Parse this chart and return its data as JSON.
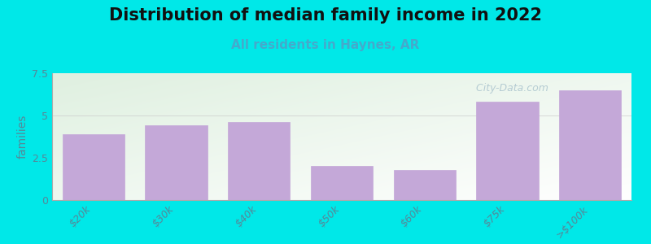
{
  "title": "Distribution of median family income in 2022",
  "subtitle": "All residents in Haynes, AR",
  "categories": [
    "$20k",
    "$30k",
    "$40k",
    "$50k",
    "$60k",
    "$75k",
    ">$100k"
  ],
  "values": [
    3.9,
    4.4,
    4.6,
    2.0,
    1.8,
    5.8,
    6.5
  ],
  "bar_color": "#c4a8d8",
  "bar_edge_color": "#c4a8d8",
  "ylabel": "families",
  "ylim": [
    0,
    7.5
  ],
  "yticks": [
    0,
    2.5,
    5,
    7.5
  ],
  "background_color": "#00e8e8",
  "plot_bg_color_topleft": "#dff0e0",
  "plot_bg_color_white": "#ffffff",
  "title_fontsize": 15,
  "title_color": "#111111",
  "subtitle_fontsize": 11,
  "subtitle_color": "#44aacc",
  "watermark_text": "  City-Data.com",
  "watermark_color": "#b0c8d0",
  "tick_label_color": "#558899",
  "tick_label_fontsize": 9
}
